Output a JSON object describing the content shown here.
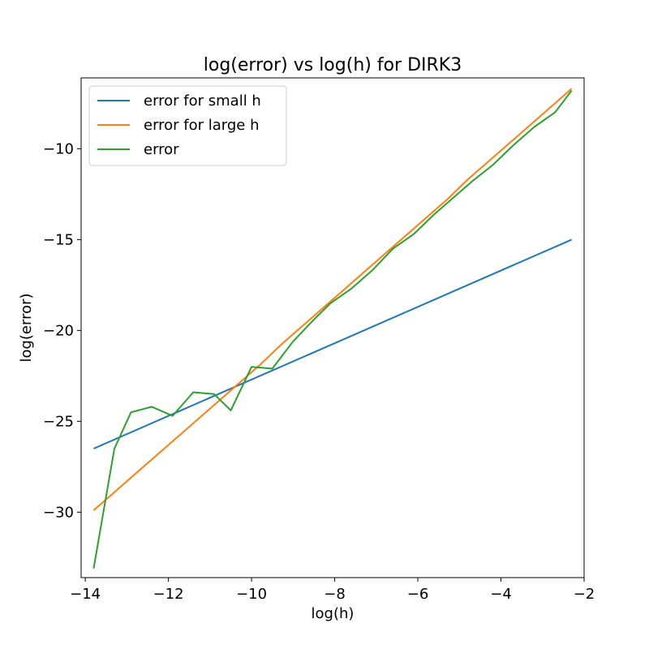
{
  "chart_data": {
    "type": "line",
    "title": "log(error) vs log(h) for DIRK3",
    "xlabel": "log(h)",
    "ylabel": "log(error)",
    "xlim": [
      -14.1,
      -2.0
    ],
    "ylim": [
      -33.6,
      -6.1
    ],
    "xticks": [
      -14,
      -12,
      -10,
      -8,
      -6,
      -4,
      -2
    ],
    "xtick_labels": [
      "−14",
      "−12",
      "−10",
      "−8",
      "−6",
      "−4",
      "−2"
    ],
    "yticks": [
      -30,
      -25,
      -20,
      -15,
      -10
    ],
    "ytick_labels": [
      "−30",
      "−25",
      "−20",
      "−15",
      "−10"
    ],
    "grid": false,
    "legend_position": "upper-left",
    "series": [
      {
        "name": "error for small h",
        "color": "#1f77b4",
        "x": [
          -13.8,
          -2.3
        ],
        "y": [
          -26.5,
          -15.0
        ]
      },
      {
        "name": "error for large h",
        "color": "#ff7f0e",
        "x": [
          -13.8,
          -13.3,
          -12.8,
          -12.3,
          -11.8,
          -11.3,
          -10.8,
          -10.3,
          -9.8,
          -9.3,
          -8.8,
          -8.3,
          -7.8,
          -7.3,
          -6.8,
          -6.3,
          -5.8,
          -5.3,
          -4.8,
          -4.3,
          -3.8,
          -3.3,
          -2.8,
          -2.3
        ],
        "y": [
          -29.9,
          -28.9,
          -27.9,
          -26.9,
          -25.9,
          -24.9,
          -23.9,
          -22.9,
          -21.9,
          -20.8,
          -19.8,
          -18.8,
          -17.8,
          -16.8,
          -15.8,
          -14.8,
          -13.8,
          -12.8,
          -11.7,
          -10.7,
          -9.7,
          -8.7,
          -7.7,
          -6.7
        ]
      },
      {
        "name": "error",
        "color": "#2ca02c",
        "x": [
          -13.8,
          -13.3,
          -12.9,
          -12.4,
          -11.9,
          -11.4,
          -10.9,
          -10.5,
          -10.0,
          -9.5,
          -9.0,
          -8.5,
          -8.1,
          -7.6,
          -7.1,
          -6.6,
          -6.1,
          -5.6,
          -5.2,
          -4.7,
          -4.2,
          -3.7,
          -3.2,
          -2.7,
          -2.3
        ],
        "y": [
          -33.1,
          -26.5,
          -24.5,
          -24.2,
          -24.7,
          -23.4,
          -23.5,
          -24.4,
          -22.0,
          -22.1,
          -20.6,
          -19.4,
          -18.5,
          -17.7,
          -16.7,
          -15.5,
          -14.7,
          -13.6,
          -12.8,
          -11.8,
          -10.9,
          -9.8,
          -8.8,
          -8.0,
          -6.8
        ]
      }
    ]
  }
}
